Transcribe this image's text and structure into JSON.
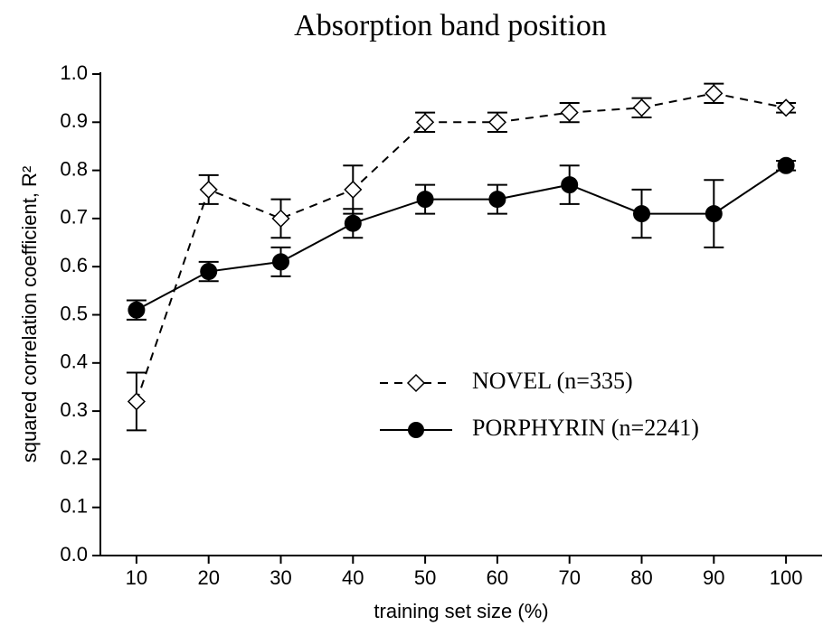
{
  "chart_data": {
    "type": "line",
    "title": "Absorption band position",
    "xlabel": "training set size (%)",
    "ylabel": "squared correlation coefficient, R²",
    "x": [
      10,
      20,
      30,
      40,
      50,
      60,
      70,
      80,
      90,
      100
    ],
    "series": [
      {
        "name": "NOVEL (n=335)",
        "color": "#000000",
        "marker": "open-diamond",
        "dash": true,
        "values": [
          0.32,
          0.76,
          0.7,
          0.76,
          0.9,
          0.9,
          0.92,
          0.93,
          0.96,
          0.93
        ],
        "errors": [
          0.06,
          0.03,
          0.04,
          0.05,
          0.02,
          0.02,
          0.02,
          0.02,
          0.02,
          0.01
        ]
      },
      {
        "name": "PORPHYRIN (n=2241)",
        "color": "#000000",
        "marker": "filled-circle",
        "dash": false,
        "values": [
          0.51,
          0.59,
          0.61,
          0.69,
          0.74,
          0.74,
          0.77,
          0.71,
          0.71,
          0.81
        ],
        "errors": [
          0.02,
          0.02,
          0.03,
          0.03,
          0.03,
          0.03,
          0.04,
          0.05,
          0.07,
          0.01
        ]
      }
    ],
    "xlim": [
      5,
      105
    ],
    "xticks": [
      10,
      20,
      30,
      40,
      50,
      60,
      70,
      80,
      90,
      100
    ],
    "ylim": [
      0,
      1
    ],
    "yticks": [
      {
        "value": 0,
        "label": "0.0"
      },
      0.1,
      0.2,
      0.3,
      0.4,
      0.5,
      0.6,
      0.7,
      0.8,
      0.9,
      {
        "value": 1,
        "label": "1.0"
      }
    ],
    "grid": false,
    "legend": "lower right"
  }
}
